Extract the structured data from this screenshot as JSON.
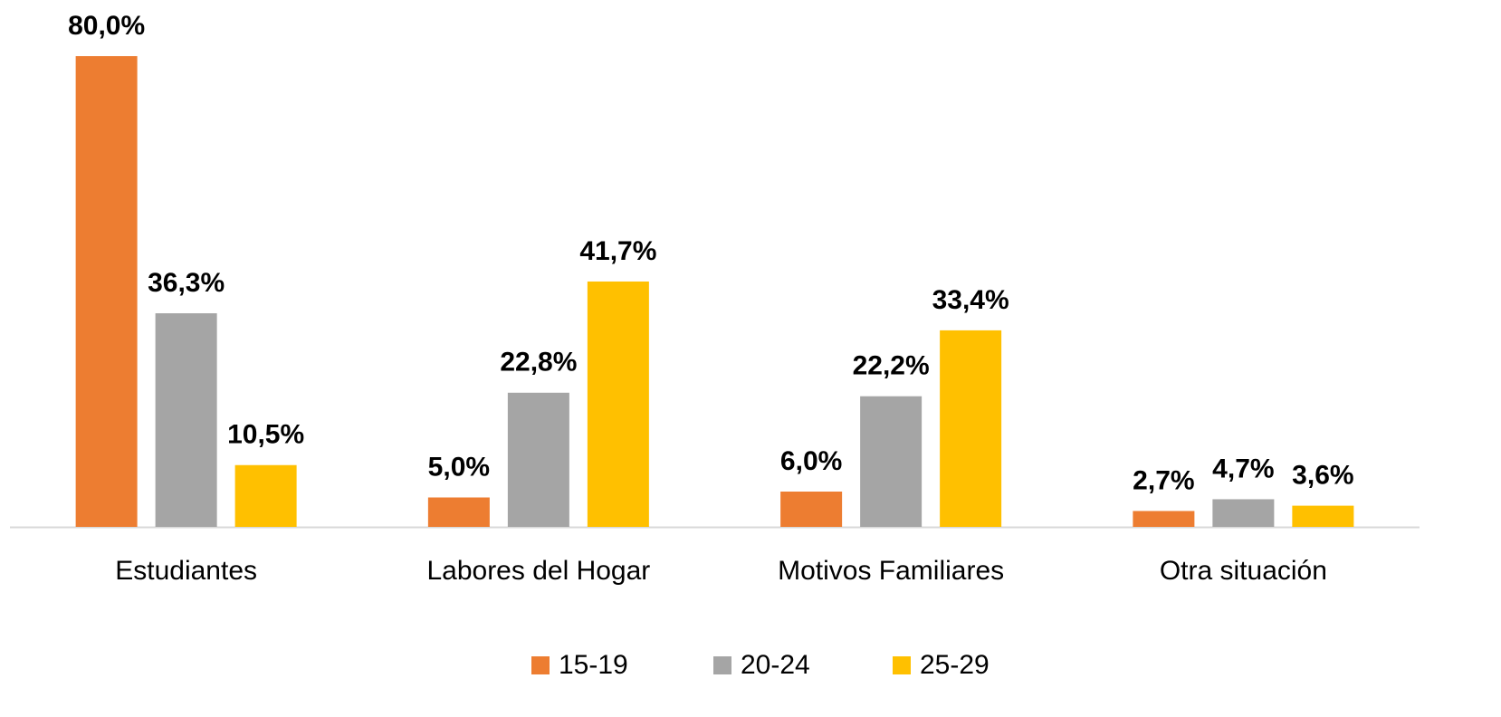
{
  "chart_data": {
    "type": "bar",
    "categories": [
      "Estudiantes",
      "Labores del Hogar",
      "Motivos Familiares",
      "Otra situación"
    ],
    "series": [
      {
        "name": "15-19",
        "color": "#ed7d31",
        "values": [
          80.0,
          5.0,
          6.0,
          2.7
        ],
        "value_labels": [
          "80,0%",
          "5,0%",
          "6,0%",
          "2,7%"
        ]
      },
      {
        "name": "20-24",
        "color": "#a5a5a5",
        "values": [
          36.3,
          22.8,
          22.2,
          4.7
        ],
        "value_labels": [
          "36,3%",
          "22,8%",
          "22,2%",
          "4,7%"
        ]
      },
      {
        "name": "25-29",
        "color": "#ffc000",
        "values": [
          10.5,
          41.7,
          33.4,
          3.6
        ],
        "value_labels": [
          "10,5%",
          "41,7%",
          "33,4%",
          "3,6%"
        ]
      }
    ],
    "legend": "bottom"
  }
}
